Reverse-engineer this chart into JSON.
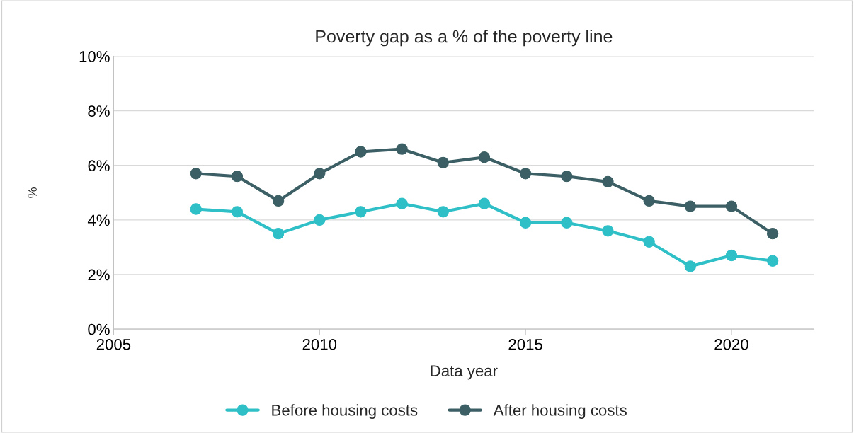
{
  "chart_data": {
    "type": "line",
    "title": "Poverty gap as a % of the poverty line",
    "xlabel": "Data year",
    "ylabel": "%",
    "x": [
      2007,
      2008,
      2009,
      2010,
      2011,
      2012,
      2013,
      2014,
      2015,
      2016,
      2017,
      2018,
      2019,
      2020,
      2021
    ],
    "series": [
      {
        "name": "Before housing costs",
        "color": "#2ebfc7",
        "values": [
          4.4,
          4.3,
          3.5,
          4.0,
          4.3,
          4.6,
          4.3,
          4.6,
          3.9,
          3.9,
          3.6,
          3.2,
          2.3,
          2.7,
          2.5
        ]
      },
      {
        "name": "After housing costs",
        "color": "#3b5f64",
        "values": [
          5.7,
          5.6,
          4.7,
          5.7,
          6.5,
          6.6,
          6.1,
          6.3,
          5.7,
          5.6,
          5.4,
          4.7,
          4.5,
          4.5,
          3.5
        ]
      }
    ],
    "xlim": [
      2005,
      2022
    ],
    "xticks": [
      2005,
      2010,
      2015,
      2020
    ],
    "ylim": [
      0,
      10
    ],
    "yticks": [
      {
        "value": 0,
        "label": "0%"
      },
      {
        "value": 2,
        "label": "2%"
      },
      {
        "value": 4,
        "label": "4%"
      },
      {
        "value": 6,
        "label": "6%"
      },
      {
        "value": 8,
        "label": "8%"
      },
      {
        "value": 10,
        "label": "10%"
      }
    ],
    "grid": "y",
    "legend": "bottom",
    "marker": "circle",
    "line_style": "solid"
  }
}
